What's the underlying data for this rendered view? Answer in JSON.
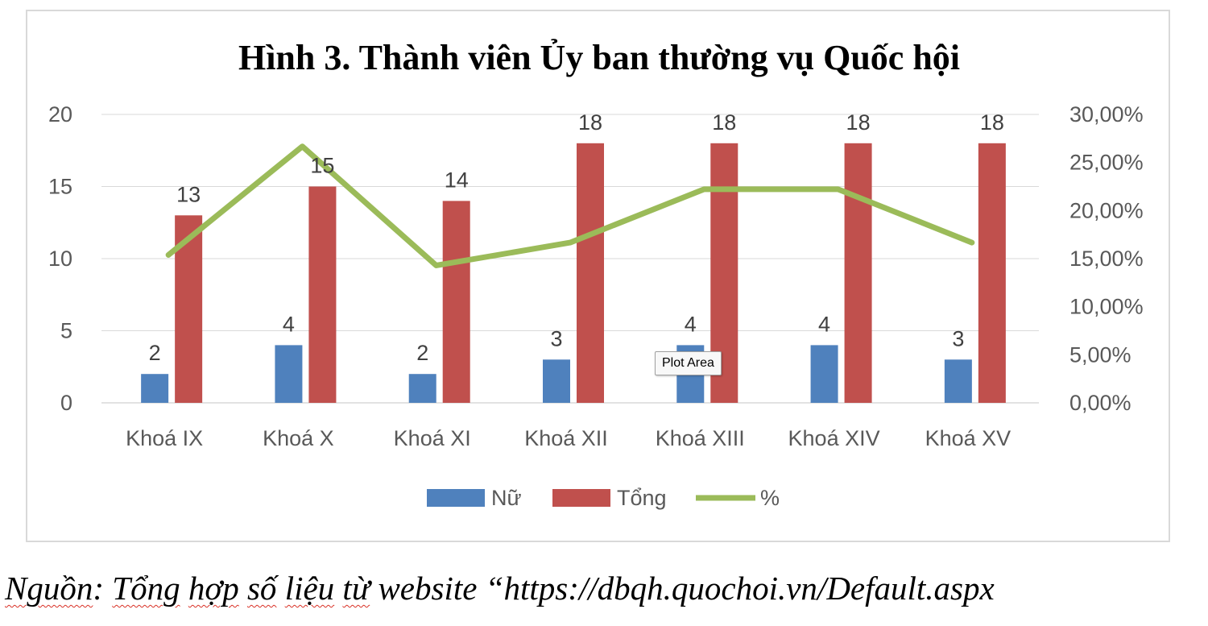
{
  "chart_data": {
    "type": "bar",
    "title": "Hình 3. Thành viên Ủy ban thường vụ Quốc hội",
    "categories": [
      "Khoá IX",
      "Khoá X",
      "Khoá XI",
      "Khoá XII",
      "Khoá XIII",
      "Khoá XIV",
      "Khoá XV"
    ],
    "series": [
      {
        "name": "Nữ",
        "type": "bar",
        "axis": "left",
        "color": "#4f81bd",
        "values": [
          2,
          4,
          2,
          3,
          4,
          4,
          3
        ]
      },
      {
        "name": "Tổng",
        "type": "bar",
        "axis": "left",
        "color": "#c0504d",
        "values": [
          13,
          15,
          14,
          18,
          18,
          18,
          18
        ]
      },
      {
        "name": "%",
        "type": "line",
        "axis": "right",
        "color": "#9bbb59",
        "values": [
          15.38,
          26.67,
          14.29,
          16.67,
          22.22,
          22.22,
          16.67
        ]
      }
    ],
    "y_left": {
      "min": 0,
      "max": 20,
      "ticks": [
        "0",
        "5",
        "10",
        "15",
        "20"
      ]
    },
    "y_right": {
      "min": 0,
      "max": 30,
      "ticks": [
        "0,00%",
        "5,00%",
        "10,00%",
        "15,00%",
        "20,00%",
        "25,00%",
        "30,00%"
      ]
    },
    "grid": true,
    "legend_position": "bottom",
    "data_labels": "bars"
  },
  "tooltip": {
    "text": "Plot Area"
  },
  "source": {
    "word1": "Nguồn",
    "colon": ": ",
    "word2": "Tổng",
    "space1": " ",
    "word3": "hợp",
    "space2": " ",
    "word4": "số",
    "space3": " ",
    "word5": "liệu",
    "space4": " ",
    "word6": "từ",
    "rest": " website “https://dbqh.quochoi.vn/Default.aspx"
  }
}
